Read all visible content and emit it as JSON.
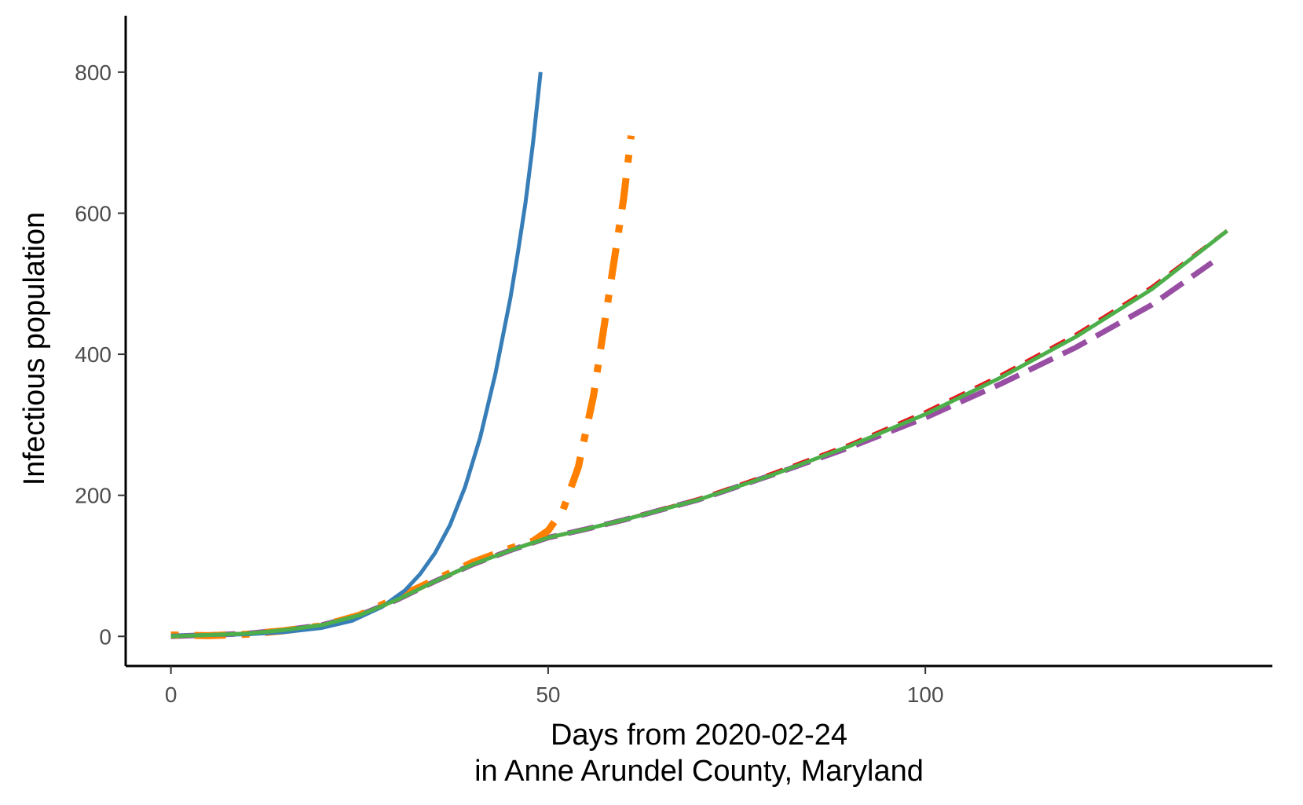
{
  "chart_data": {
    "type": "line",
    "title": "",
    "xlabel_line1": "Days from 2020-02-24",
    "xlabel_line2": "in Anne Arundel County, Maryland",
    "ylabel": "Infectious population",
    "xlim": [
      -6,
      146
    ],
    "ylim": [
      -42,
      880
    ],
    "x_ticks": [
      0,
      50,
      100
    ],
    "y_ticks": [
      0,
      200,
      400,
      600,
      800
    ],
    "grid": false,
    "legend": "none",
    "series": [
      {
        "color": "#377EB8",
        "dash": "solid",
        "x": [
          0,
          5,
          10,
          15,
          20,
          24,
          28,
          31,
          33,
          35,
          37,
          39,
          41,
          43,
          45,
          46,
          47,
          48,
          49
        ],
        "y": [
          1,
          2,
          3,
          6,
          12,
          22,
          42,
          65,
          88,
          118,
          158,
          212,
          282,
          372,
          480,
          545,
          615,
          700,
          800
        ]
      },
      {
        "color": "#FF7F00",
        "dash": "dotdash",
        "x": [
          0,
          5,
          10,
          15,
          20,
          25,
          30,
          35,
          40,
          45,
          48,
          50,
          52,
          54,
          56,
          58,
          60,
          61
        ],
        "y": [
          2,
          1,
          3,
          8,
          15,
          30,
          55,
          80,
          105,
          125,
          135,
          150,
          180,
          240,
          340,
          480,
          620,
          710
        ]
      },
      {
        "color": "#E41A1C",
        "dash": "dashed",
        "x": [
          0,
          5,
          10,
          15,
          20,
          25,
          30,
          35,
          40,
          45,
          50,
          55,
          60,
          70,
          80,
          90,
          100,
          110,
          120,
          130,
          140
        ],
        "y": [
          0,
          2,
          4,
          9,
          16,
          30,
          52,
          78,
          102,
          122,
          140,
          152,
          165,
          195,
          232,
          272,
          318,
          370,
          428,
          495,
          575
        ]
      },
      {
        "color": "#984EA3",
        "dash": "longdash",
        "x": [
          0,
          5,
          10,
          15,
          20,
          25,
          30,
          35,
          40,
          45,
          50,
          55,
          60,
          70,
          80,
          90,
          100,
          110,
          120,
          130,
          138
        ],
        "y": [
          0,
          2,
          4,
          9,
          16,
          30,
          52,
          78,
          102,
          122,
          140,
          152,
          165,
          194,
          230,
          268,
          310,
          358,
          410,
          470,
          530
        ]
      },
      {
        "color": "#4DAF4A",
        "dash": "solid",
        "x": [
          0,
          5,
          10,
          15,
          20,
          25,
          30,
          35,
          40,
          45,
          50,
          55,
          60,
          70,
          80,
          90,
          100,
          110,
          120,
          130,
          140
        ],
        "y": [
          0,
          2,
          4,
          9,
          16,
          30,
          52,
          78,
          102,
          122,
          140,
          152,
          165,
          194,
          230,
          270,
          315,
          367,
          425,
          492,
          575
        ]
      }
    ]
  }
}
